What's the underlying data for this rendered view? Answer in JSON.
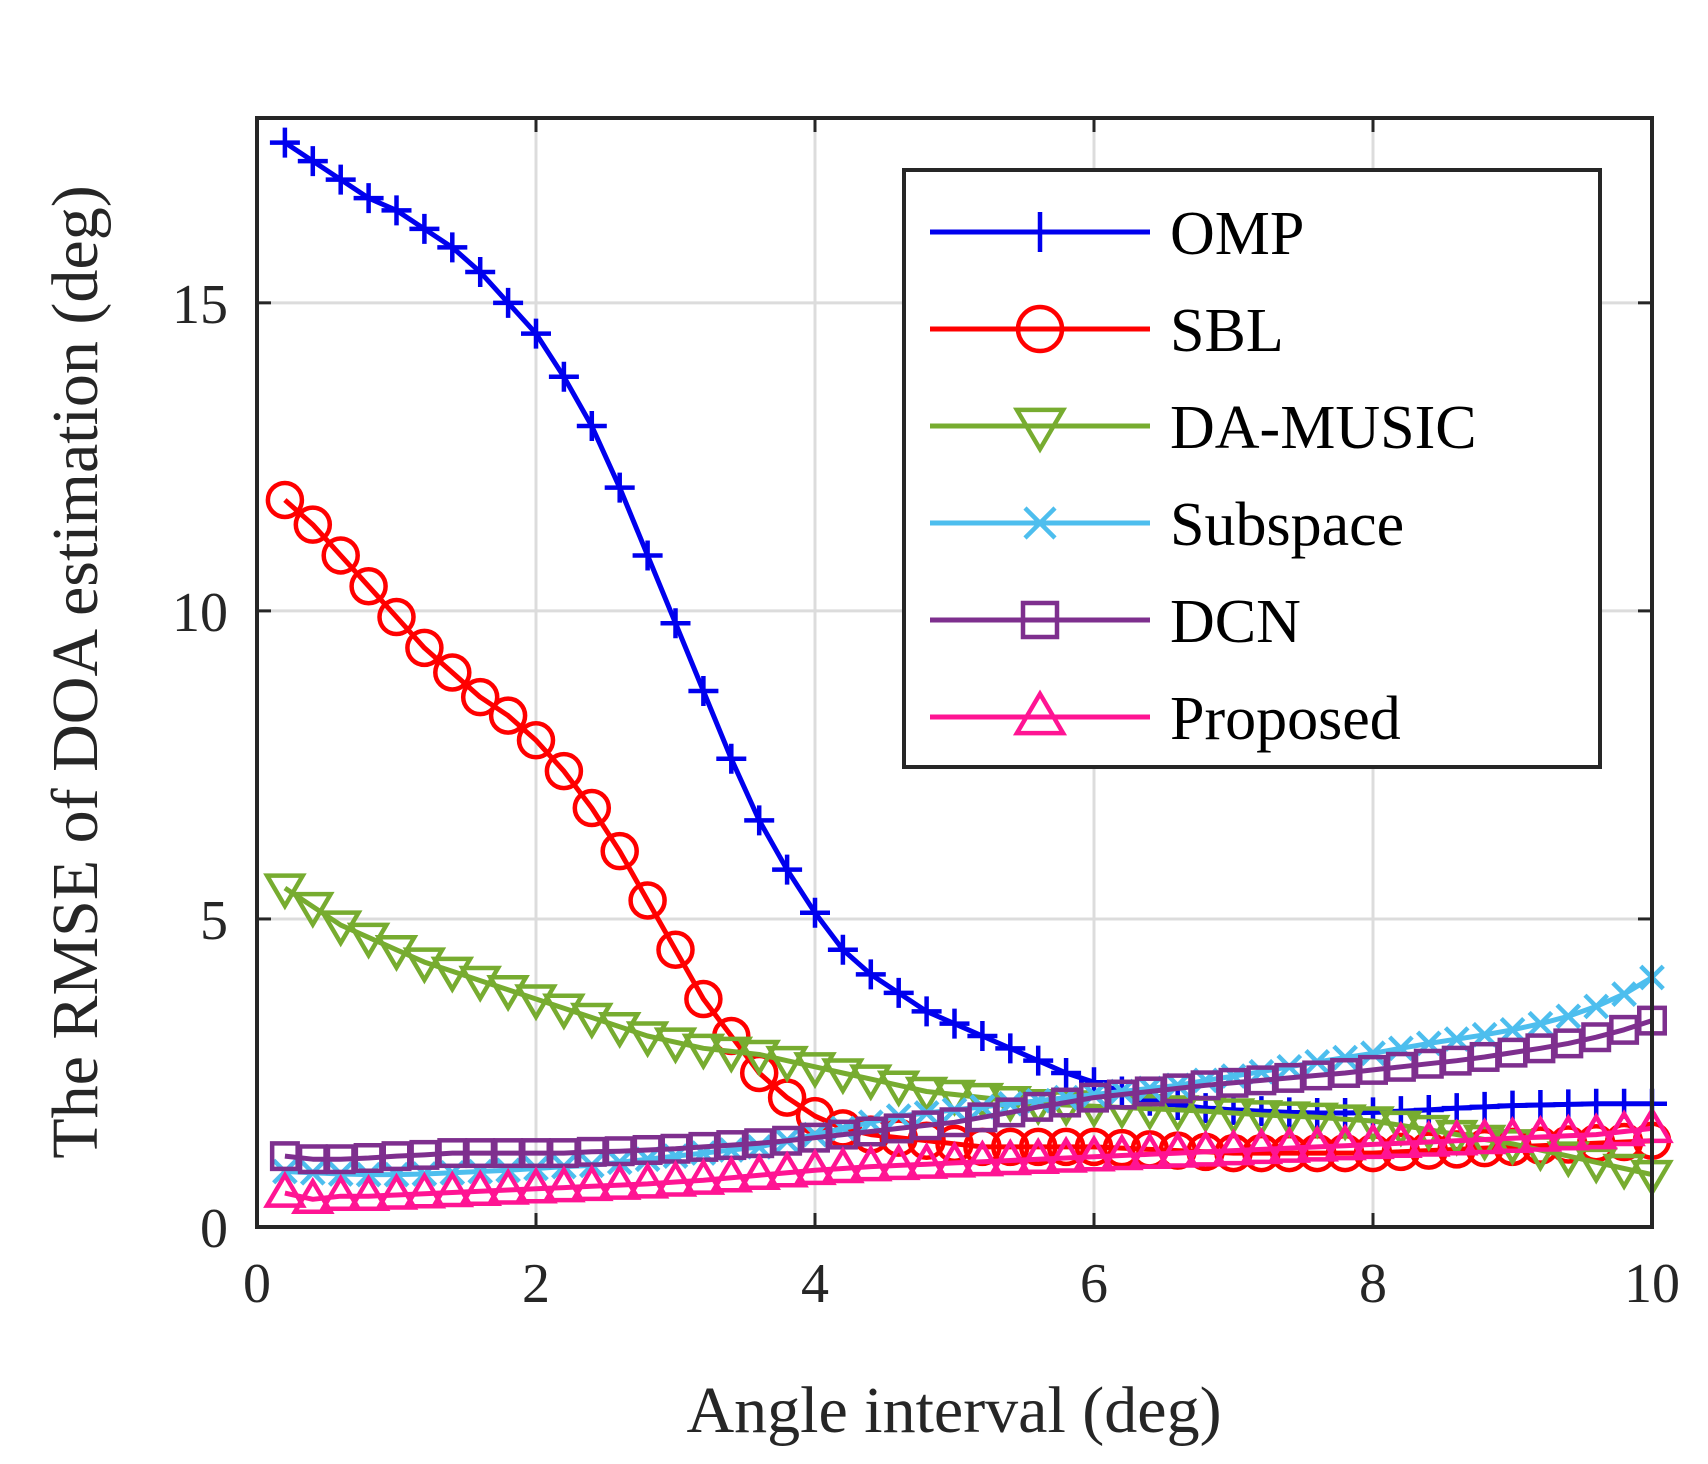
{
  "chart_data": {
    "type": "line",
    "xlabel": "Angle interval (deg)",
    "ylabel": "The RMSE of DOA estimation (deg)",
    "xlim": [
      0,
      10
    ],
    "ylim": [
      0,
      18
    ],
    "xticks": [
      0,
      2,
      4,
      6,
      8,
      10
    ],
    "yticks": [
      0,
      5,
      10,
      15
    ],
    "grid": true,
    "legend_position": "top-right",
    "x": [
      0.2,
      0.4,
      0.6,
      0.8,
      1.0,
      1.2,
      1.4,
      1.6,
      1.8,
      2.0,
      2.2,
      2.4,
      2.6,
      2.8,
      3.0,
      3.2,
      3.4,
      3.6,
      3.8,
      4.0,
      4.2,
      4.4,
      4.6,
      4.8,
      5.0,
      5.2,
      5.4,
      5.6,
      5.8,
      6.0,
      6.2,
      6.4,
      6.6,
      6.8,
      7.0,
      7.2,
      7.4,
      7.6,
      7.8,
      8.0,
      8.2,
      8.4,
      8.6,
      8.8,
      9.0,
      9.2,
      9.4,
      9.6,
      9.8,
      10.0
    ],
    "series": [
      {
        "name": "OMP",
        "color": "#0000ee",
        "marker": "plus",
        "values": [
          17.6,
          17.3,
          17.0,
          16.7,
          16.5,
          16.2,
          15.9,
          15.5,
          15.0,
          14.5,
          13.8,
          13.0,
          12.0,
          10.9,
          9.8,
          8.7,
          7.6,
          6.6,
          5.8,
          5.1,
          4.5,
          4.1,
          3.8,
          3.5,
          3.3,
          3.1,
          2.9,
          2.7,
          2.5,
          2.35,
          2.2,
          2.05,
          1.98,
          1.93,
          1.9,
          1.88,
          1.86,
          1.85,
          1.85,
          1.86,
          1.88,
          1.9,
          1.93,
          1.95,
          1.97,
          1.98,
          1.99,
          2.0,
          2.0,
          2.0
        ]
      },
      {
        "name": "SBL",
        "color": "#ff0000",
        "marker": "circle",
        "values": [
          11.8,
          11.4,
          10.9,
          10.4,
          9.9,
          9.4,
          9.0,
          8.6,
          8.3,
          7.9,
          7.4,
          6.8,
          6.1,
          5.3,
          4.5,
          3.7,
          3.1,
          2.5,
          2.1,
          1.8,
          1.6,
          1.5,
          1.45,
          1.4,
          1.35,
          1.3,
          1.3,
          1.3,
          1.3,
          1.3,
          1.28,
          1.26,
          1.24,
          1.22,
          1.2,
          1.2,
          1.2,
          1.2,
          1.2,
          1.2,
          1.22,
          1.24,
          1.26,
          1.28,
          1.3,
          1.32,
          1.34,
          1.36,
          1.38,
          1.4
        ]
      },
      {
        "name": "DA-MUSIC",
        "color": "#77ac30",
        "marker": "triangle-down",
        "values": [
          5.5,
          5.2,
          4.9,
          4.7,
          4.5,
          4.3,
          4.15,
          4.0,
          3.85,
          3.7,
          3.55,
          3.4,
          3.25,
          3.1,
          3.0,
          2.9,
          2.85,
          2.8,
          2.7,
          2.6,
          2.5,
          2.4,
          2.3,
          2.2,
          2.15,
          2.1,
          2.05,
          2.0,
          1.98,
          1.96,
          1.94,
          1.92,
          1.9,
          1.88,
          1.85,
          1.82,
          1.8,
          1.78,
          1.75,
          1.72,
          1.65,
          1.58,
          1.5,
          1.42,
          1.35,
          1.25,
          1.15,
          1.05,
          0.95,
          0.85
        ]
      },
      {
        "name": "Subspace",
        "color": "#4dbeee",
        "marker": "x",
        "values": [
          0.9,
          0.88,
          0.86,
          0.85,
          0.85,
          0.86,
          0.88,
          0.9,
          0.92,
          0.95,
          0.98,
          1.0,
          1.05,
          1.1,
          1.15,
          1.2,
          1.25,
          1.3,
          1.4,
          1.5,
          1.6,
          1.7,
          1.8,
          1.85,
          1.9,
          1.95,
          2.0,
          2.05,
          2.1,
          2.15,
          2.2,
          2.25,
          2.3,
          2.38,
          2.45,
          2.52,
          2.6,
          2.68,
          2.75,
          2.82,
          2.9,
          2.98,
          3.05,
          3.12,
          3.2,
          3.3,
          3.42,
          3.58,
          3.78,
          4.05
        ]
      },
      {
        "name": "DCN",
        "color": "#7e2f8e",
        "marker": "square",
        "values": [
          1.15,
          1.1,
          1.1,
          1.12,
          1.15,
          1.17,
          1.2,
          1.2,
          1.2,
          1.2,
          1.2,
          1.22,
          1.23,
          1.25,
          1.27,
          1.3,
          1.33,
          1.36,
          1.4,
          1.45,
          1.5,
          1.55,
          1.6,
          1.65,
          1.7,
          1.78,
          1.86,
          1.95,
          2.02,
          2.1,
          2.15,
          2.2,
          2.25,
          2.3,
          2.34,
          2.38,
          2.42,
          2.46,
          2.5,
          2.55,
          2.6,
          2.65,
          2.7,
          2.76,
          2.83,
          2.9,
          2.98,
          3.08,
          3.2,
          3.35
        ]
      },
      {
        "name": "Proposed",
        "color": "#ff1493",
        "marker": "triangle-up",
        "values": [
          0.55,
          0.45,
          0.5,
          0.5,
          0.52,
          0.54,
          0.56,
          0.58,
          0.6,
          0.62,
          0.64,
          0.66,
          0.68,
          0.7,
          0.73,
          0.76,
          0.8,
          0.84,
          0.88,
          0.92,
          0.95,
          0.98,
          1.0,
          1.02,
          1.04,
          1.06,
          1.08,
          1.1,
          1.12,
          1.14,
          1.16,
          1.18,
          1.2,
          1.22,
          1.24,
          1.26,
          1.28,
          1.3,
          1.32,
          1.34,
          1.36,
          1.38,
          1.4,
          1.42,
          1.44,
          1.46,
          1.48,
          1.5,
          1.55,
          1.6
        ]
      }
    ]
  }
}
